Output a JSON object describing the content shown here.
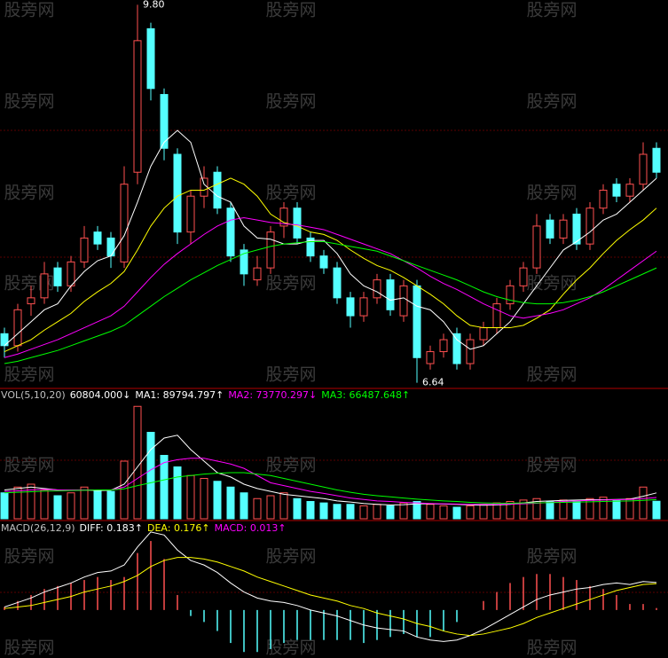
{
  "watermark": "股旁网",
  "chart_data": [
    {
      "type": "candlestick",
      "high_label": "9.80",
      "low_label": "6.64",
      "ylim": [
        6.6,
        9.84
      ],
      "open": [
        7.05,
        6.95,
        7.3,
        7.35,
        7.6,
        7.45,
        7.65,
        7.9,
        7.85,
        7.65,
        8.4,
        9.6,
        9.05,
        8.55,
        7.9,
        8.2,
        8.4,
        8.1,
        7.75,
        7.5,
        7.6,
        7.95,
        8.1,
        7.85,
        7.7,
        7.6,
        7.35,
        7.2,
        7.35,
        7.5,
        7.2,
        7.45,
        6.8,
        6.9,
        7.05,
        6.8,
        7.0,
        7.1,
        7.3,
        7.45,
        7.6,
        8.0,
        7.85,
        8.05,
        7.8,
        8.1,
        8.3,
        8.2,
        8.3,
        8.6
      ],
      "high": [
        7.1,
        7.3,
        7.45,
        7.65,
        7.65,
        7.7,
        7.95,
        7.95,
        7.9,
        8.45,
        9.8,
        9.65,
        9.1,
        8.6,
        8.25,
        8.45,
        8.45,
        8.15,
        7.8,
        7.7,
        7.95,
        8.15,
        8.15,
        7.9,
        7.75,
        7.65,
        7.4,
        7.4,
        7.55,
        7.55,
        7.5,
        7.5,
        6.95,
        7.05,
        7.1,
        7.05,
        7.15,
        7.35,
        7.5,
        7.65,
        8.05,
        8.05,
        8.05,
        8.1,
        8.15,
        8.3,
        8.35,
        8.35,
        8.65,
        8.65
      ],
      "low": [
        6.85,
        6.9,
        7.2,
        7.3,
        7.4,
        7.4,
        7.6,
        7.75,
        7.6,
        7.6,
        8.3,
        9.0,
        8.5,
        7.8,
        7.8,
        8.1,
        8.05,
        7.65,
        7.45,
        7.45,
        7.55,
        7.85,
        7.8,
        7.65,
        7.55,
        7.3,
        7.1,
        7.15,
        7.3,
        7.2,
        7.15,
        6.64,
        6.75,
        6.85,
        6.75,
        6.75,
        6.95,
        7.05,
        7.25,
        7.4,
        7.55,
        7.8,
        7.8,
        7.75,
        7.75,
        8.05,
        8.15,
        8.15,
        8.25,
        8.35
      ],
      "close": [
        6.95,
        7.25,
        7.35,
        7.55,
        7.45,
        7.65,
        7.85,
        7.8,
        7.7,
        8.3,
        9.5,
        9.1,
        8.6,
        7.9,
        8.2,
        8.35,
        8.1,
        7.7,
        7.55,
        7.6,
        7.9,
        8.1,
        7.85,
        7.7,
        7.6,
        7.35,
        7.2,
        7.35,
        7.5,
        7.25,
        7.45,
        6.85,
        6.9,
        7.0,
        6.8,
        7.0,
        7.1,
        7.3,
        7.45,
        7.6,
        7.95,
        7.85,
        8.0,
        7.8,
        8.1,
        8.25,
        8.2,
        8.3,
        8.55,
        8.4
      ],
      "up_color": "#ff5050",
      "down_color": "#54ffff",
      "series": [
        {
          "color": "#ffffff",
          "values": [
            6.95,
            7.05,
            7.15,
            7.25,
            7.3,
            7.45,
            7.57,
            7.66,
            7.7,
            7.87,
            8.15,
            8.45,
            8.65,
            8.75,
            8.65,
            8.3,
            8.2,
            8.15,
            7.95,
            7.85,
            7.84,
            7.8,
            7.8,
            7.83,
            7.83,
            7.72,
            7.55,
            7.45,
            7.4,
            7.33,
            7.35,
            7.28,
            7.25,
            7.15,
            7.0,
            6.92,
            6.95,
            7.05,
            7.15,
            7.3,
            7.45,
            7.6,
            7.75,
            7.82,
            7.9,
            8.0,
            8.05,
            8.15,
            8.25,
            8.35
          ]
        },
        {
          "color": "#ffff00",
          "values": [
            6.9,
            6.95,
            7.0,
            7.08,
            7.15,
            7.22,
            7.32,
            7.4,
            7.47,
            7.57,
            7.75,
            7.95,
            8.1,
            8.2,
            8.25,
            8.25,
            8.3,
            8.35,
            8.3,
            8.2,
            8.05,
            7.98,
            7.95,
            7.9,
            7.88,
            7.83,
            7.75,
            7.68,
            7.62,
            7.58,
            7.52,
            7.45,
            7.38,
            7.3,
            7.2,
            7.12,
            7.1,
            7.1,
            7.1,
            7.12,
            7.18,
            7.25,
            7.38,
            7.5,
            7.6,
            7.72,
            7.83,
            7.92,
            8.0,
            8.1
          ]
        },
        {
          "color": "#ff00ff",
          "values": [
            6.85,
            6.88,
            6.92,
            6.96,
            7.0,
            7.05,
            7.1,
            7.15,
            7.2,
            7.28,
            7.4,
            7.52,
            7.63,
            7.72,
            7.8,
            7.88,
            7.95,
            8.0,
            8.02,
            8.0,
            7.98,
            7.97,
            7.96,
            7.94,
            7.92,
            7.88,
            7.84,
            7.8,
            7.76,
            7.72,
            7.66,
            7.6,
            7.53,
            7.47,
            7.42,
            7.36,
            7.3,
            7.25,
            7.2,
            7.18,
            7.2,
            7.22,
            7.25,
            7.3,
            7.35,
            7.42,
            7.5,
            7.58,
            7.66,
            7.74
          ]
        },
        {
          "color": "#00ff00",
          "values": [
            6.8,
            6.82,
            6.85,
            6.88,
            6.91,
            6.95,
            6.99,
            7.03,
            7.07,
            7.12,
            7.2,
            7.28,
            7.36,
            7.43,
            7.5,
            7.56,
            7.62,
            7.67,
            7.72,
            7.75,
            7.78,
            7.8,
            7.81,
            7.82,
            7.82,
            7.8,
            7.78,
            7.76,
            7.74,
            7.7,
            7.66,
            7.62,
            7.58,
            7.54,
            7.5,
            7.45,
            7.4,
            7.36,
            7.33,
            7.31,
            7.3,
            7.3,
            7.31,
            7.33,
            7.36,
            7.4,
            7.45,
            7.5,
            7.55,
            7.6
          ]
        }
      ]
    },
    {
      "type": "volume",
      "header": [
        {
          "text": "VOL(5,10,20)",
          "color": "#c0c0c0"
        },
        {
          "text": "60804.000↓",
          "color": "#ffffff"
        },
        {
          "text": "MA1: 89794.797↑",
          "color": "#ffffff"
        },
        {
          "text": "MA2: 73770.297↓",
          "color": "#ff00ff"
        },
        {
          "text": "MA3: 66487.648↑",
          "color": "#00ff00"
        }
      ],
      "ylim": [
        0,
        400000
      ],
      "values": [
        90000,
        110000,
        120000,
        100000,
        80000,
        90000,
        110000,
        100000,
        95000,
        200000,
        390000,
        300000,
        220000,
        180000,
        150000,
        140000,
        130000,
        110000,
        90000,
        70000,
        80000,
        90000,
        70000,
        60000,
        55000,
        50000,
        50000,
        45000,
        50000,
        45000,
        55000,
        60000,
        50000,
        45000,
        40000,
        45000,
        50000,
        55000,
        60000,
        65000,
        70000,
        60000,
        65000,
        60000,
        70000,
        75000,
        65000,
        70000,
        110000,
        60804
      ],
      "series": [
        {
          "color": "#ffffff",
          "values": [
            100000,
            105000,
            110000,
            105000,
            100000,
            100000,
            100000,
            98000,
            99000,
            120000,
            180000,
            240000,
            280000,
            290000,
            240000,
            200000,
            160000,
            145000,
            120000,
            105000,
            95000,
            85000,
            80000,
            75000,
            70000,
            62000,
            58000,
            53000,
            50000,
            48000,
            49000,
            52000,
            52000,
            51000,
            50000,
            48000,
            47000,
            48000,
            50000,
            55000,
            60000,
            62000,
            64000,
            65000,
            66000,
            66000,
            67000,
            68000,
            78000,
            89794.797
          ]
        },
        {
          "color": "#ff00ff",
          "values": [
            95000,
            97000,
            100000,
            102000,
            100000,
            100000,
            100000,
            100000,
            100000,
            110000,
            140000,
            170000,
            195000,
            205000,
            210000,
            210000,
            200000,
            190000,
            175000,
            150000,
            125000,
            115000,
            105000,
            95000,
            88000,
            80000,
            72000,
            67000,
            62000,
            60000,
            57000,
            55000,
            53000,
            52000,
            51000,
            50000,
            50000,
            50000,
            51000,
            52000,
            54000,
            57000,
            60000,
            62000,
            64000,
            65000,
            66000,
            67000,
            70000,
            73770.297
          ]
        },
        {
          "color": "#00ff00",
          "values": [
            90000,
            92000,
            94000,
            96000,
            97000,
            98000,
            99000,
            100000,
            100000,
            104000,
            115000,
            125000,
            135000,
            145000,
            150000,
            155000,
            158000,
            160000,
            160000,
            155000,
            150000,
            140000,
            130000,
            120000,
            110000,
            100000,
            92000,
            85000,
            80000,
            76000,
            72000,
            68000,
            65000,
            62000,
            60000,
            57000,
            55000,
            54000,
            54000,
            55000,
            55000,
            56000,
            57000,
            58000,
            59000,
            60000,
            61000,
            62000,
            64000,
            66487.648
          ]
        }
      ]
    },
    {
      "type": "macd",
      "header": [
        {
          "text": "MACD(26,12,9)",
          "color": "#c0c0c0"
        },
        {
          "text": "DIFF: 0.183↑",
          "color": "#ffffff"
        },
        {
          "text": "DEA: 0.176↑",
          "color": "#ffff00"
        },
        {
          "text": "MACD: 0.013↑",
          "color": "#ff00ff"
        }
      ],
      "ylim": [
        -0.32,
        0.49
      ],
      "values": [
        0.02,
        0.06,
        0.1,
        0.14,
        0.16,
        0.18,
        0.2,
        0.22,
        0.2,
        0.22,
        0.38,
        0.46,
        0.34,
        0.1,
        -0.04,
        -0.08,
        -0.14,
        -0.22,
        -0.28,
        -0.28,
        -0.26,
        -0.22,
        -0.2,
        -0.2,
        -0.2,
        -0.2,
        -0.2,
        -0.22,
        -0.2,
        -0.18,
        -0.16,
        -0.18,
        -0.18,
        -0.14,
        -0.08,
        0.0,
        0.06,
        0.12,
        0.18,
        0.22,
        0.24,
        0.24,
        0.22,
        0.2,
        0.16,
        0.14,
        0.1,
        0.04,
        0.04,
        0.013
      ],
      "up_color": "#ff5050",
      "down_color": "#54ffff",
      "series": [
        {
          "color": "#ffffff",
          "values": [
            0.02,
            0.05,
            0.08,
            0.12,
            0.15,
            0.18,
            0.22,
            0.25,
            0.26,
            0.3,
            0.42,
            0.52,
            0.5,
            0.4,
            0.33,
            0.3,
            0.25,
            0.18,
            0.12,
            0.08,
            0.06,
            0.05,
            0.03,
            0.0,
            -0.02,
            -0.04,
            -0.07,
            -0.1,
            -0.12,
            -0.13,
            -0.14,
            -0.18,
            -0.2,
            -0.21,
            -0.2,
            -0.17,
            -0.13,
            -0.08,
            -0.03,
            0.02,
            0.07,
            0.1,
            0.12,
            0.14,
            0.15,
            0.17,
            0.18,
            0.17,
            0.19,
            0.183
          ]
        },
        {
          "color": "#ffff00",
          "values": [
            0.01,
            0.02,
            0.03,
            0.05,
            0.07,
            0.09,
            0.12,
            0.14,
            0.16,
            0.19,
            0.23,
            0.29,
            0.33,
            0.35,
            0.35,
            0.34,
            0.32,
            0.29,
            0.26,
            0.22,
            0.19,
            0.16,
            0.13,
            0.1,
            0.08,
            0.06,
            0.03,
            0.01,
            -0.02,
            -0.04,
            -0.06,
            -0.09,
            -0.11,
            -0.14,
            -0.16,
            -0.17,
            -0.16,
            -0.14,
            -0.12,
            -0.09,
            -0.05,
            -0.02,
            0.01,
            0.04,
            0.07,
            0.1,
            0.13,
            0.15,
            0.17,
            0.176
          ]
        }
      ]
    }
  ]
}
